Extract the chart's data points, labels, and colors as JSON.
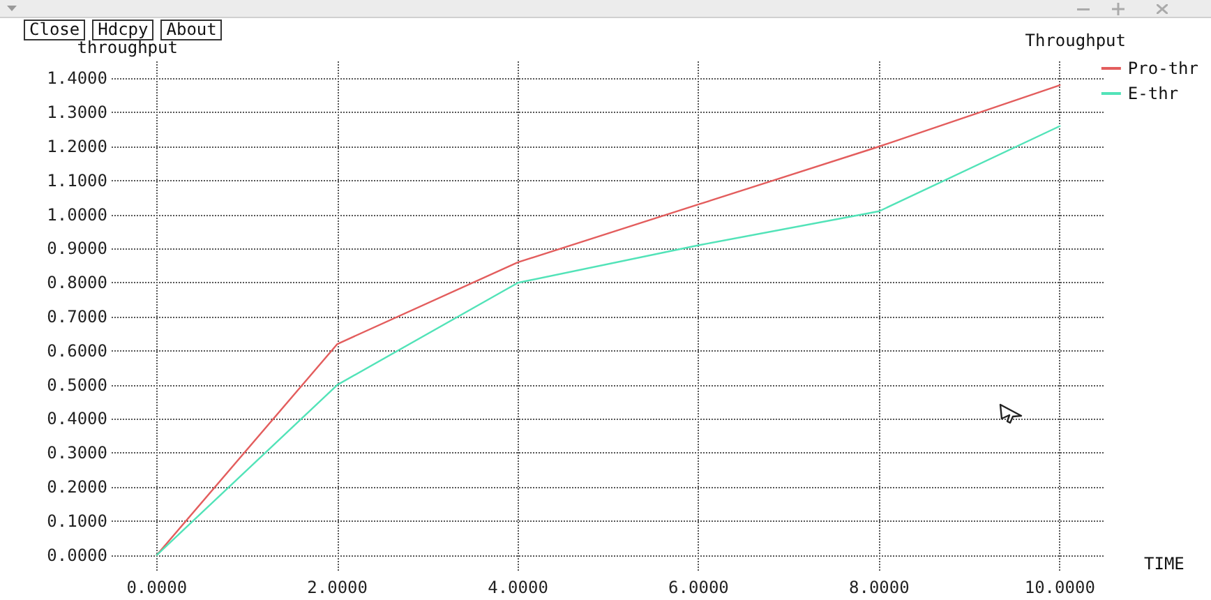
{
  "chart_data": {
    "type": "line",
    "title": "Throughput",
    "xlabel": "TIME",
    "ylabel": "throughput",
    "annotations": [
      "Close",
      "Hdcpy",
      "About"
    ],
    "x": [
      0,
      2,
      4,
      6,
      8,
      10
    ],
    "series": [
      {
        "name": "Pro-thr",
        "color": "#e35d5d",
        "values": [
          0,
          0.62,
          0.86,
          1.03,
          1.2,
          1.38
        ]
      },
      {
        "name": "E-thr",
        "color": "#52e3b8",
        "values": [
          0,
          0.5,
          0.8,
          0.91,
          1.01,
          1.26
        ]
      }
    ],
    "xlim": [
      -0.5,
      10.5
    ],
    "ylim": [
      -0.05,
      1.45
    ],
    "xticks": [
      {
        "value": 0,
        "label": "0.0000"
      },
      {
        "value": 2,
        "label": "2.0000"
      },
      {
        "value": 4,
        "label": "4.0000"
      },
      {
        "value": 6,
        "label": "6.0000"
      },
      {
        "value": 8,
        "label": "8.0000"
      },
      {
        "value": 10,
        "label": "10.0000"
      }
    ],
    "yticks": [
      {
        "value": 0,
        "label": "0.0000"
      },
      {
        "value": 0.1,
        "label": "0.1000"
      },
      {
        "value": 0.2,
        "label": "0.2000"
      },
      {
        "value": 0.3,
        "label": "0.3000"
      },
      {
        "value": 0.4,
        "label": "0.4000"
      },
      {
        "value": 0.5,
        "label": "0.5000"
      },
      {
        "value": 0.6,
        "label": "0.6000"
      },
      {
        "value": 0.7,
        "label": "0.7000"
      },
      {
        "value": 0.8,
        "label": "0.8000"
      },
      {
        "value": 0.9,
        "label": "0.9000"
      },
      {
        "value": 1,
        "label": "1.0000"
      },
      {
        "value": 1.1,
        "label": "1.1000"
      },
      {
        "value": 1.2,
        "label": "1.2000"
      },
      {
        "value": 1.3,
        "label": "1.3000"
      },
      {
        "value": 1.4,
        "label": "1.4000"
      }
    ],
    "grid": true,
    "legend": "top right",
    "marker": "none",
    "line_style": "solid"
  }
}
